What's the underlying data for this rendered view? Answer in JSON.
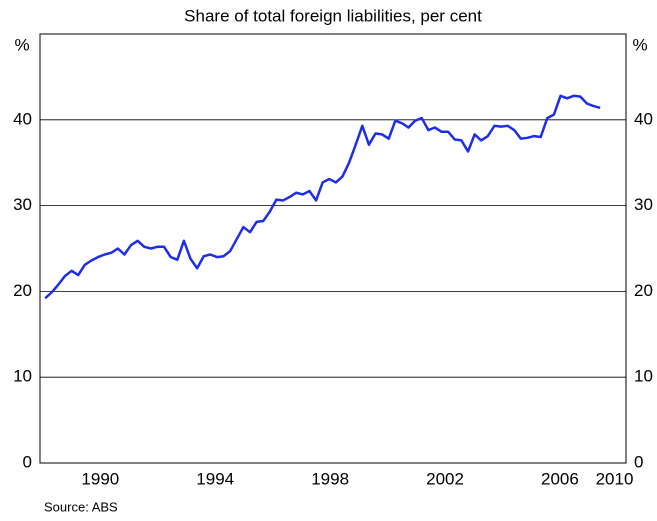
{
  "chart_data": {
    "type": "line",
    "subtitle": "Share of total foreign liabilities, per cent",
    "y_unit_left": "%",
    "y_unit_right": "%",
    "source": "Source: ABS",
    "x": [
      1988.58,
      1988.81,
      1989.04,
      1989.27,
      1989.5,
      1989.73,
      1989.96,
      1990.19,
      1990.42,
      1990.65,
      1990.88,
      1991.11,
      1991.34,
      1991.57,
      1991.8,
      1992.03,
      1992.26,
      1992.49,
      1992.72,
      1992.95,
      1993.18,
      1993.41,
      1993.64,
      1993.87,
      1994.1,
      1994.33,
      1994.56,
      1994.79,
      1995.02,
      1995.25,
      1995.48,
      1995.71,
      1995.94,
      1996.17,
      1996.4,
      1996.63,
      1996.86,
      1997.09,
      1997.32,
      1997.55,
      1997.78,
      1998.01,
      1998.24,
      1998.47,
      1998.7,
      1998.93,
      1999.16,
      1999.39,
      1999.62,
      1999.85,
      2000.08,
      2000.31,
      2000.54,
      2000.77,
      2001.0,
      2001.23,
      2001.46,
      2001.69,
      2001.92,
      2002.15,
      2002.38,
      2002.61,
      2002.84,
      2003.07,
      2003.3,
      2003.53,
      2003.76,
      2003.99,
      2004.22,
      2004.45,
      2004.68,
      2004.91,
      2005.14,
      2005.37,
      2005.6,
      2005.83,
      2006.06,
      2006.29,
      2006.52,
      2006.75,
      2006.98,
      2007.21,
      2007.44,
      2007.67,
      2007.9
    ],
    "series": [
      {
        "name": "Share",
        "color": "#1e2ee6",
        "values": [
          19.2,
          19.9,
          20.8,
          21.8,
          22.4,
          21.9,
          23.1,
          23.6,
          24.0,
          24.3,
          24.5,
          25.0,
          24.3,
          25.4,
          25.9,
          25.2,
          25.0,
          25.2,
          25.2,
          24.0,
          23.7,
          25.9,
          23.8,
          22.7,
          24.1,
          24.3,
          24.0,
          24.1,
          24.7,
          26.1,
          27.5,
          26.9,
          28.1,
          28.2,
          29.3,
          30.7,
          30.6,
          31.0,
          31.5,
          31.3,
          31.7,
          30.6,
          32.7,
          33.1,
          32.7,
          33.4,
          35.0,
          37.1,
          39.3,
          37.1,
          38.4,
          38.3,
          37.8,
          39.9,
          39.6,
          39.1,
          39.9,
          40.2,
          38.8,
          39.1,
          38.6,
          38.6,
          37.7,
          37.6,
          36.3,
          38.3,
          37.6,
          38.1,
          39.3,
          39.2,
          39.3,
          38.8,
          37.8,
          37.9,
          38.1,
          38.0,
          40.2,
          40.6,
          42.8,
          42.5,
          42.8,
          42.7,
          41.9,
          41.6,
          41.4
        ]
      }
    ],
    "xlim": [
      1988.4,
      2008.8
    ],
    "xticks": [
      {
        "value": 1990.5,
        "label": "1990"
      },
      {
        "value": 1994.5,
        "label": "1994"
      },
      {
        "value": 1998.5,
        "label": "1998"
      },
      {
        "value": 2002.5,
        "label": "2002"
      },
      {
        "value": 2006.5,
        "label": "2006"
      },
      {
        "value": 2008.4,
        "label": "2010"
      }
    ],
    "ylim": [
      0,
      50
    ],
    "yticks": [
      0,
      10,
      20,
      30,
      40
    ],
    "grid": true
  }
}
